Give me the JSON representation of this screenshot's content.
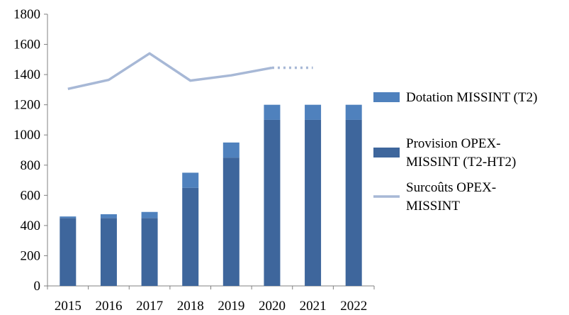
{
  "chart_data": {
    "type": "bar",
    "title": "",
    "xlabel": "",
    "ylabel": "",
    "ylim": [
      0,
      1800
    ],
    "yticks": [
      "0",
      "200",
      "400",
      "600",
      "800",
      "1000",
      "1200",
      "1400",
      "1600",
      "1800"
    ],
    "categories": [
      "2015",
      "2016",
      "2017",
      "2018",
      "2019",
      "2020",
      "2021",
      "2022"
    ],
    "stacked": true,
    "series": [
      {
        "name": "Provision OPEX-MISSINT (T2-HT2)",
        "kind": "bar",
        "color": "#3e669c",
        "values": [
          450,
          450,
          450,
          650,
          850,
          1100,
          1100,
          1100
        ]
      },
      {
        "name": "Dotation MISSINT (T2)",
        "kind": "bar",
        "color": "#4f81bd",
        "values": [
          10,
          25,
          40,
          100,
          100,
          100,
          100,
          100
        ]
      },
      {
        "name": "Surcoûts OPEX-MISSINT",
        "kind": "line",
        "color": "#a7b8d6",
        "x": [
          "2015",
          "2016",
          "2017",
          "2018",
          "2019",
          "2020"
        ],
        "values": [
          1305,
          1365,
          1540,
          1360,
          1395,
          1445
        ],
        "projection": {
          "x": [
            "2020",
            "2021"
          ],
          "values": [
            1445,
            1445
          ],
          "style": "dotted"
        }
      }
    ],
    "legend": {
      "position": "right",
      "entries": [
        {
          "label_lines": [
            "Dotation MISSINT (T2)"
          ],
          "color": "#4f81bd",
          "marker": "square"
        },
        {
          "label_lines": [
            "Provision OPEX-",
            "MISSINT (T2-HT2)"
          ],
          "color": "#3e669c",
          "marker": "square"
        },
        {
          "label_lines": [
            "Surcoûts OPEX-",
            "MISSINT"
          ],
          "color": "#a7b8d6",
          "marker": "line"
        }
      ]
    }
  }
}
